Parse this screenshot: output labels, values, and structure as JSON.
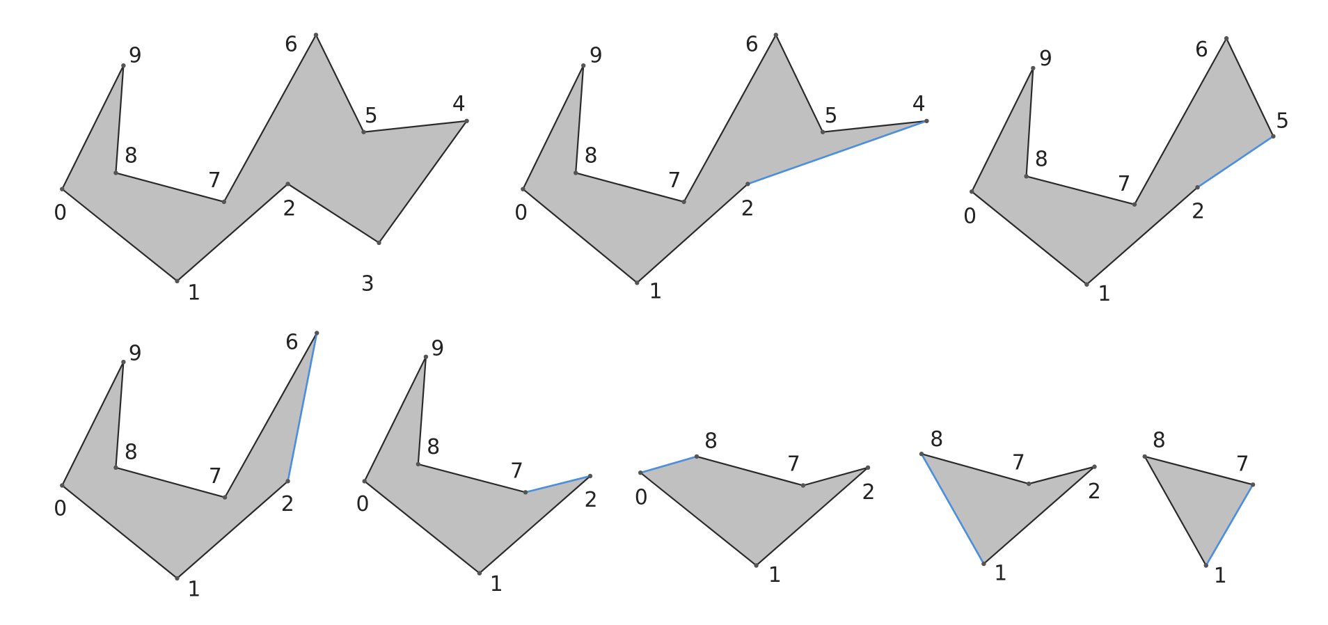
{
  "colors": {
    "fill": "#c0c0c0",
    "edge": "#2a2a2a",
    "diagonal": "#4a8fe0",
    "vertex": "#555555"
  },
  "panels": [
    {
      "vertices": [
        "0",
        "1",
        "2",
        "3",
        "4",
        "5",
        "6",
        "7",
        "8",
        "9"
      ],
      "diagonal": []
    },
    {
      "vertices": [
        "0",
        "1",
        "2",
        "4",
        "5",
        "6",
        "7",
        "8",
        "9"
      ],
      "diagonal": [
        "2",
        "4"
      ]
    },
    {
      "vertices": [
        "0",
        "1",
        "2",
        "5",
        "6",
        "7",
        "8",
        "9"
      ],
      "diagonal": [
        "2",
        "5"
      ]
    },
    {
      "vertices": [
        "0",
        "1",
        "2",
        "6",
        "7",
        "8",
        "9"
      ],
      "diagonal": [
        "2",
        "6"
      ]
    },
    {
      "vertices": [
        "0",
        "1",
        "2",
        "7",
        "8",
        "9"
      ],
      "diagonal": [
        "2",
        "7"
      ]
    },
    {
      "vertices": [
        "0",
        "1",
        "2",
        "7",
        "8"
      ],
      "diagonal": [
        "8",
        "0"
      ]
    },
    {
      "vertices": [
        "1",
        "2",
        "7",
        "8"
      ],
      "diagonal": [
        "8",
        "1"
      ]
    },
    {
      "vertices": [
        "1",
        "7",
        "8"
      ],
      "diagonal": [
        "7",
        "1"
      ]
    }
  ]
}
